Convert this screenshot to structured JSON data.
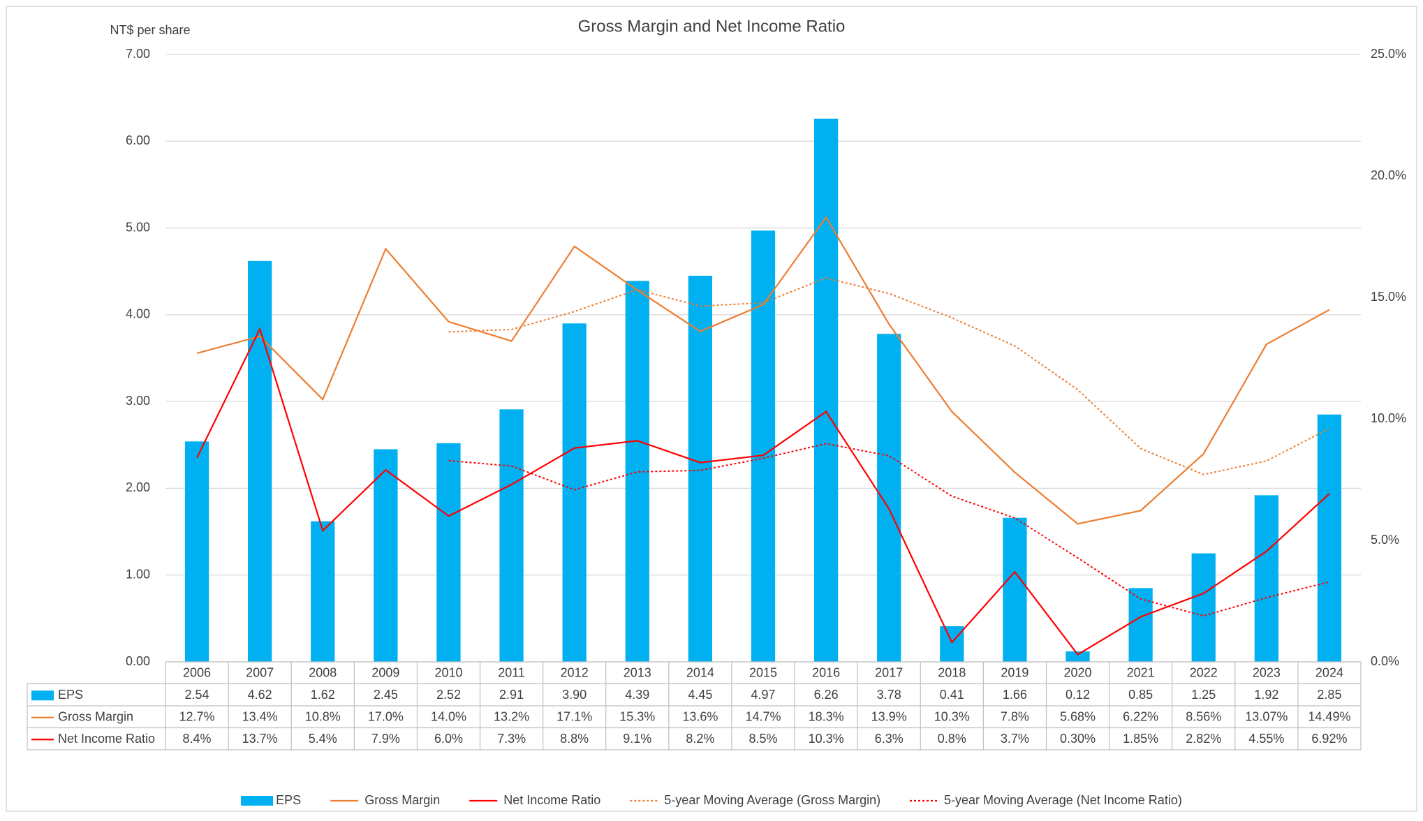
{
  "chart_data": {
    "type": "combo",
    "title": "Gross Margin and Net Income Ratio",
    "y_axis_label": "NT$ per share",
    "categories": [
      "2006",
      "2007",
      "2008",
      "2009",
      "2010",
      "2011",
      "2012",
      "2013",
      "2014",
      "2015",
      "2016",
      "2017",
      "2018",
      "2019",
      "2020",
      "2021",
      "2022",
      "2023",
      "2024"
    ],
    "ylim": [
      0,
      7
    ],
    "yticks": [
      {
        "value": 0,
        "label": "0.00"
      },
      {
        "value": 1,
        "label": "1.00"
      },
      {
        "value": 2,
        "label": "2.00"
      },
      {
        "value": 3,
        "label": "3.00"
      },
      {
        "value": 4,
        "label": "4.00"
      },
      {
        "value": 5,
        "label": "5.00"
      },
      {
        "value": 6,
        "label": "6.00"
      },
      {
        "value": 7,
        "label": "7.00"
      }
    ],
    "y2lim": [
      0,
      25
    ],
    "y2ticks": [
      {
        "value": 0,
        "label": "0.0%"
      },
      {
        "value": 5,
        "label": "5.0%"
      },
      {
        "value": 10,
        "label": "10.0%"
      },
      {
        "value": 15,
        "label": "15.0%"
      },
      {
        "value": 20,
        "label": "20.0%"
      },
      {
        "value": 25,
        "label": "25.0%"
      }
    ],
    "grid": true,
    "legend": "bottom",
    "series": [
      {
        "name": "EPS",
        "type": "bar",
        "color": "#00b0f0",
        "values": [
          2.54,
          4.62,
          1.62,
          2.45,
          2.52,
          2.91,
          3.9,
          4.39,
          4.45,
          4.97,
          6.26,
          3.78,
          0.41,
          1.66,
          0.12,
          0.85,
          1.25,
          1.92,
          2.85
        ],
        "value_labels": [
          "2.54",
          "4.62",
          "1.62",
          "2.45",
          "2.52",
          "2.91",
          "3.90",
          "4.39",
          "4.45",
          "4.97",
          "6.26",
          "3.78",
          "0.41",
          "1.66",
          "0.12",
          "0.85",
          "1.25",
          "1.92",
          "2.85"
        ]
      },
      {
        "name": "Gross Margin",
        "type": "line",
        "axis": "y2",
        "color": "#ed7d31",
        "dash": "solid",
        "values": [
          12.7,
          13.4,
          10.8,
          17.0,
          14.0,
          13.2,
          17.1,
          15.3,
          13.6,
          14.7,
          18.3,
          13.9,
          10.3,
          7.8,
          5.68,
          6.22,
          8.56,
          13.07,
          14.49
        ],
        "value_labels": [
          "12.7%",
          "13.4%",
          "10.8%",
          "17.0%",
          "14.0%",
          "13.2%",
          "17.1%",
          "15.3%",
          "13.6%",
          "14.7%",
          "18.3%",
          "13.9%",
          "10.3%",
          "7.8%",
          "5.68%",
          "6.22%",
          "8.56%",
          "13.07%",
          "14.49%"
        ]
      },
      {
        "name": "Net Income Ratio",
        "type": "line",
        "axis": "y2",
        "color": "#ff0000",
        "dash": "solid",
        "values": [
          8.4,
          13.7,
          5.4,
          7.9,
          6.0,
          7.3,
          8.8,
          9.1,
          8.2,
          8.5,
          10.3,
          6.3,
          0.8,
          3.7,
          0.3,
          1.85,
          2.82,
          4.55,
          6.92
        ],
        "value_labels": [
          "8.4%",
          "13.7%",
          "5.4%",
          "7.9%",
          "6.0%",
          "7.3%",
          "8.8%",
          "9.1%",
          "8.2%",
          "8.5%",
          "10.3%",
          "6.3%",
          "0.8%",
          "3.7%",
          "0.30%",
          "1.85%",
          "2.82%",
          "4.55%",
          "6.92%"
        ]
      },
      {
        "name": "5-year Moving Average (Gross Margin)",
        "type": "line",
        "axis": "y2",
        "color": "#ed7d31",
        "dash": "dotted",
        "values": [
          null,
          null,
          null,
          null,
          13.58,
          13.68,
          14.42,
          15.32,
          14.64,
          14.78,
          15.8,
          15.16,
          14.16,
          13.0,
          11.2,
          8.78,
          7.71,
          8.27,
          9.6
        ]
      },
      {
        "name": "5-year Moving Average (Net Income Ratio)",
        "type": "line",
        "axis": "y2",
        "color": "#ff0000",
        "dash": "dotted",
        "values": [
          null,
          null,
          null,
          null,
          8.28,
          8.06,
          7.08,
          7.82,
          7.88,
          8.38,
          8.98,
          8.48,
          6.82,
          5.92,
          4.28,
          2.59,
          1.89,
          2.64,
          3.29
        ]
      }
    ]
  }
}
